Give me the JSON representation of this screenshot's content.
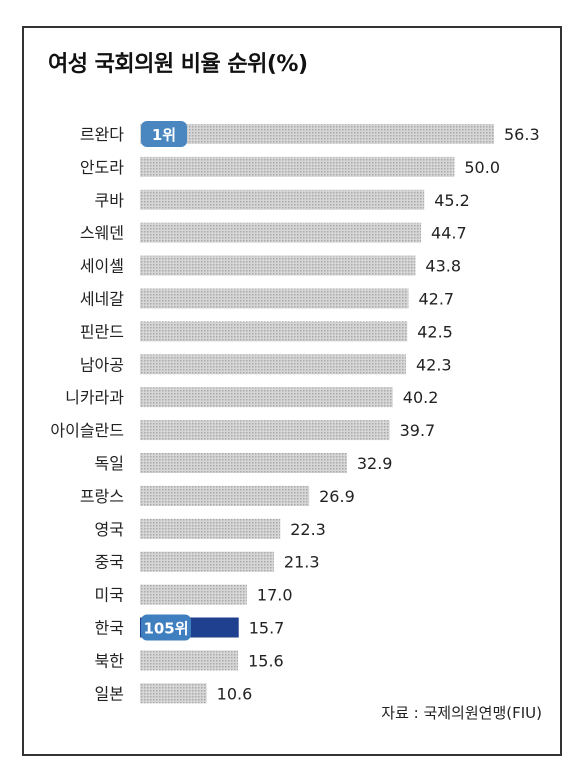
{
  "chart_data": {
    "type": "bar",
    "orientation": "horizontal",
    "title": "여성 국회의원 비율 순위(%)",
    "categories": [
      "르완다",
      "안도라",
      "쿠바",
      "스웨덴",
      "세이셸",
      "세네갈",
      "핀란드",
      "남아공",
      "니카라과",
      "아이슬란드",
      "독일",
      "프랑스",
      "영국",
      "중국",
      "미국",
      "한국",
      "북한",
      "일본"
    ],
    "values": [
      56.3,
      50.0,
      45.2,
      44.7,
      43.8,
      42.7,
      42.5,
      42.3,
      40.2,
      39.7,
      32.9,
      26.9,
      22.3,
      21.3,
      17.0,
      15.7,
      15.6,
      10.6
    ],
    "value_labels": [
      "56.3",
      "50.0",
      "45.2",
      "44.7",
      "43.8",
      "42.7",
      "42.5",
      "42.3",
      "40.2",
      "39.7",
      "32.9",
      "26.9",
      "22.3",
      "21.3",
      "17.0",
      "15.7",
      "15.6",
      "10.6"
    ],
    "badges": [
      {
        "category": "르완다",
        "text": "1위"
      },
      {
        "category": "한국",
        "text": "105위"
      }
    ],
    "highlight": "한국",
    "xlim": [
      0,
      56.3
    ],
    "grid": false,
    "source": "자료 : 국제의원연맹(FIU)"
  },
  "colors": {
    "bar": "#c9c9c9",
    "bar_highlight": "#1f3f8f",
    "badge_first": "#4a86c0",
    "badge_korea": "#3f7fbf",
    "text": "#222222"
  }
}
